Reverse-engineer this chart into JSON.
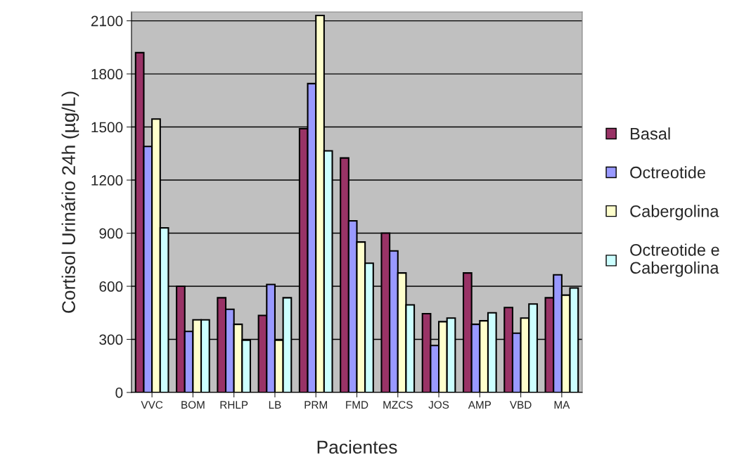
{
  "chart_data": {
    "type": "bar",
    "xlabel": "Pacientes",
    "ylabel": "Cortisol Urinário 24h (µg/L)",
    "categories": [
      "VVC",
      "BOM",
      "RHLP",
      "LB",
      "PRM",
      "FMD",
      "MZCS",
      "JOS",
      "AMP",
      "VBD",
      "MA"
    ],
    "series": [
      {
        "name": "Basal",
        "color": "#993366",
        "values": [
          1920,
          600,
          535,
          435,
          1490,
          1325,
          900,
          445,
          675,
          480,
          535
        ]
      },
      {
        "name": "Octreotide",
        "color": "#9999ff",
        "values": [
          1390,
          345,
          470,
          610,
          1745,
          970,
          800,
          265,
          385,
          335,
          665
        ]
      },
      {
        "name": "Cabergolina",
        "color": "#ffffcc",
        "values": [
          1545,
          410,
          385,
          295,
          2130,
          850,
          675,
          400,
          405,
          420,
          550
        ]
      },
      {
        "name": "Octreotide e\nCabergolina",
        "color": "#ccffff",
        "values": [
          930,
          410,
          295,
          535,
          1365,
          730,
          495,
          420,
          450,
          500,
          590
        ]
      }
    ],
    "ylim": [
      0,
      2150
    ],
    "yticks": [
      0,
      300,
      600,
      900,
      1200,
      1500,
      1800,
      2100
    ],
    "grid": "y",
    "legend": "right"
  }
}
